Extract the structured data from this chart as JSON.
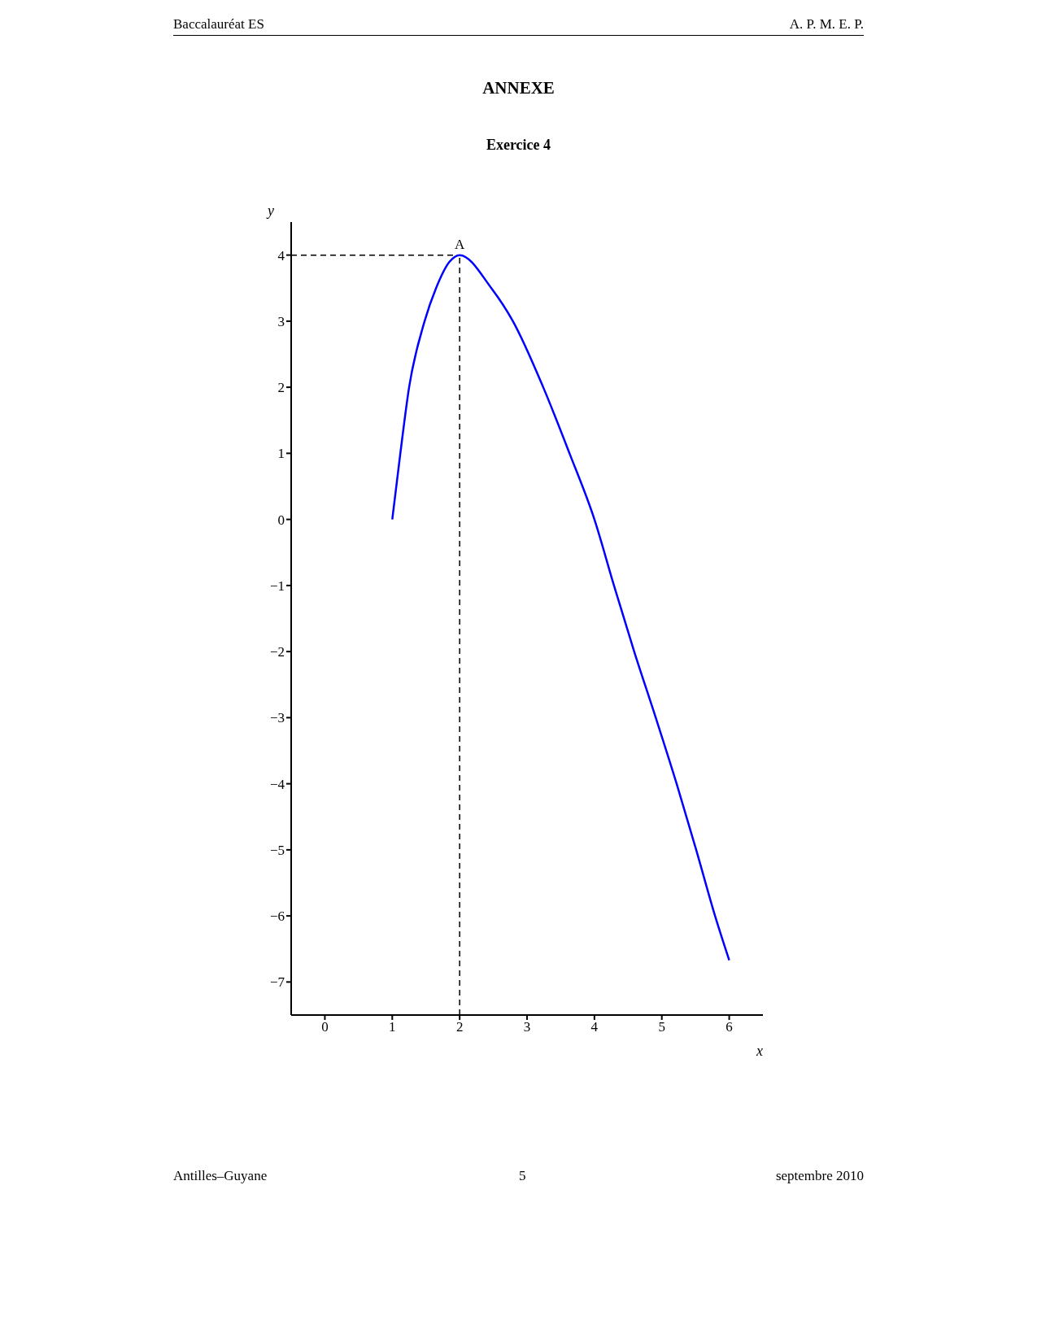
{
  "chart_data": {
    "type": "line",
    "title": "ANNEXE",
    "subtitle": "Exercice 4",
    "xlabel": "x",
    "ylabel": "y",
    "annotations": [
      "Baccalauréat ES",
      "A. P. M. E. P.",
      "Antilles–Guyane",
      "5",
      "septembre 2010",
      {
        "text": "A",
        "x": 2,
        "y": 4
      }
    ],
    "x": [
      1,
      1.12,
      1.25,
      1.48,
      1.65,
      1.85,
      2,
      2.47,
      2.79,
      3.24,
      3.63,
      4,
      4.29,
      4.59,
      4.91,
      5.22,
      5.51,
      5.79,
      6
    ],
    "series": [
      {
        "color": "#0000ff",
        "values": [
          0,
          1,
          2,
          3,
          3.5,
          3.9,
          4,
          3.5,
          3,
          2,
          1,
          0,
          -1,
          -2,
          -3,
          -4,
          -5,
          -6,
          -6.67
        ]
      }
    ],
    "xlim": [
      -0.5,
      6.5
    ],
    "ylim": [
      -7.5,
      4.5
    ],
    "xticks": [
      0,
      1,
      2,
      3,
      4,
      5,
      6
    ],
    "yticks": [
      {
        "value": -7,
        "label": "−7"
      },
      {
        "value": -6,
        "label": "−6"
      },
      {
        "value": -5,
        "label": "−5"
      },
      {
        "value": -4,
        "label": "−4"
      },
      {
        "value": -3,
        "label": "−3"
      },
      {
        "value": -2,
        "label": "−2"
      },
      {
        "value": -1,
        "label": "−1"
      },
      0,
      1,
      2,
      3,
      4
    ],
    "ref_lines": [
      {
        "axis": "y",
        "value": 4,
        "line_style": "dashed",
        "color": "#000000"
      },
      {
        "axis": "x",
        "value": 2,
        "line_style": "dashed",
        "color": "#000000"
      }
    ],
    "grid": false,
    "legend": false,
    "marker": "none",
    "line_style": "solid"
  }
}
